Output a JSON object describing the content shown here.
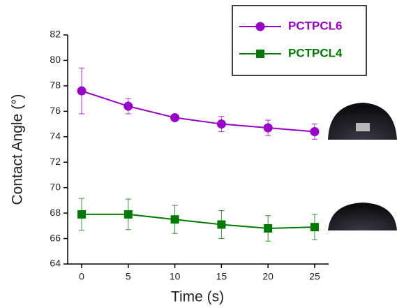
{
  "chart_data": {
    "type": "line",
    "x_label": "Time (s)",
    "y_label": "Contact Angle (°)",
    "x": [
      0,
      5,
      10,
      15,
      20,
      25
    ],
    "series": [
      {
        "name": "PCTPCL6",
        "color": "#9900cc",
        "marker": "circle",
        "values": [
          77.6,
          76.4,
          75.5,
          75.0,
          74.7,
          74.4
        ],
        "errors": [
          1.8,
          0.6,
          0.2,
          0.6,
          0.6,
          0.6
        ]
      },
      {
        "name": "PCTPCL4",
        "color": "#007a00",
        "marker": "square",
        "values": [
          67.9,
          67.9,
          67.5,
          67.1,
          66.8,
          66.9
        ],
        "errors": [
          1.25,
          1.2,
          1.1,
          1.1,
          1.0,
          1.0
        ]
      }
    ],
    "xlim": [
      -1.5,
      26.5
    ],
    "xticks": [
      0,
      5,
      10,
      15,
      20,
      25
    ],
    "ylim": [
      64,
      82
    ],
    "yticks": [
      64,
      66,
      68,
      70,
      72,
      74,
      76,
      78,
      80,
      82
    ],
    "grid": false,
    "legend": "top-right"
  }
}
